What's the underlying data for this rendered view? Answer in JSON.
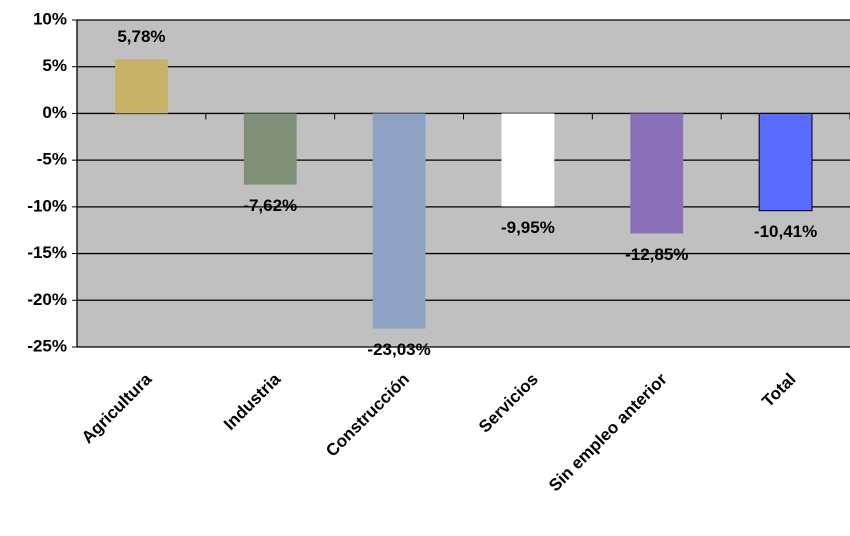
{
  "chart_data": {
    "type": "bar",
    "categories": [
      "Agricultura",
      "Industria",
      "Construcción",
      "Servicios",
      "Sin empleo anterior",
      "Total"
    ],
    "values": [
      5.78,
      -7.62,
      -23.03,
      -9.95,
      -12.85,
      -10.41
    ],
    "value_labels": [
      "5,78%",
      "-7,62%",
      "-23,03%",
      "-9,95%",
      "-12,85%",
      "-10,41%"
    ],
    "colors": [
      "#c8b266",
      "#7f8f78",
      "#8ea3c4",
      "#ffffff",
      "#8a70b8",
      "#5a6cff"
    ],
    "ylim": [
      -25,
      10
    ],
    "yticks": [
      {
        "value": -25,
        "label": "-25%"
      },
      {
        "value": -20,
        "label": "-20%"
      },
      {
        "value": -15,
        "label": "-15%"
      },
      {
        "value": -10,
        "label": "-10%"
      },
      {
        "value": -5,
        "label": "-5%"
      },
      {
        "value": 0,
        "label": "0%"
      },
      {
        "value": 5,
        "label": "5%"
      },
      {
        "value": 10,
        "label": "10%"
      }
    ],
    "grid": true
  }
}
